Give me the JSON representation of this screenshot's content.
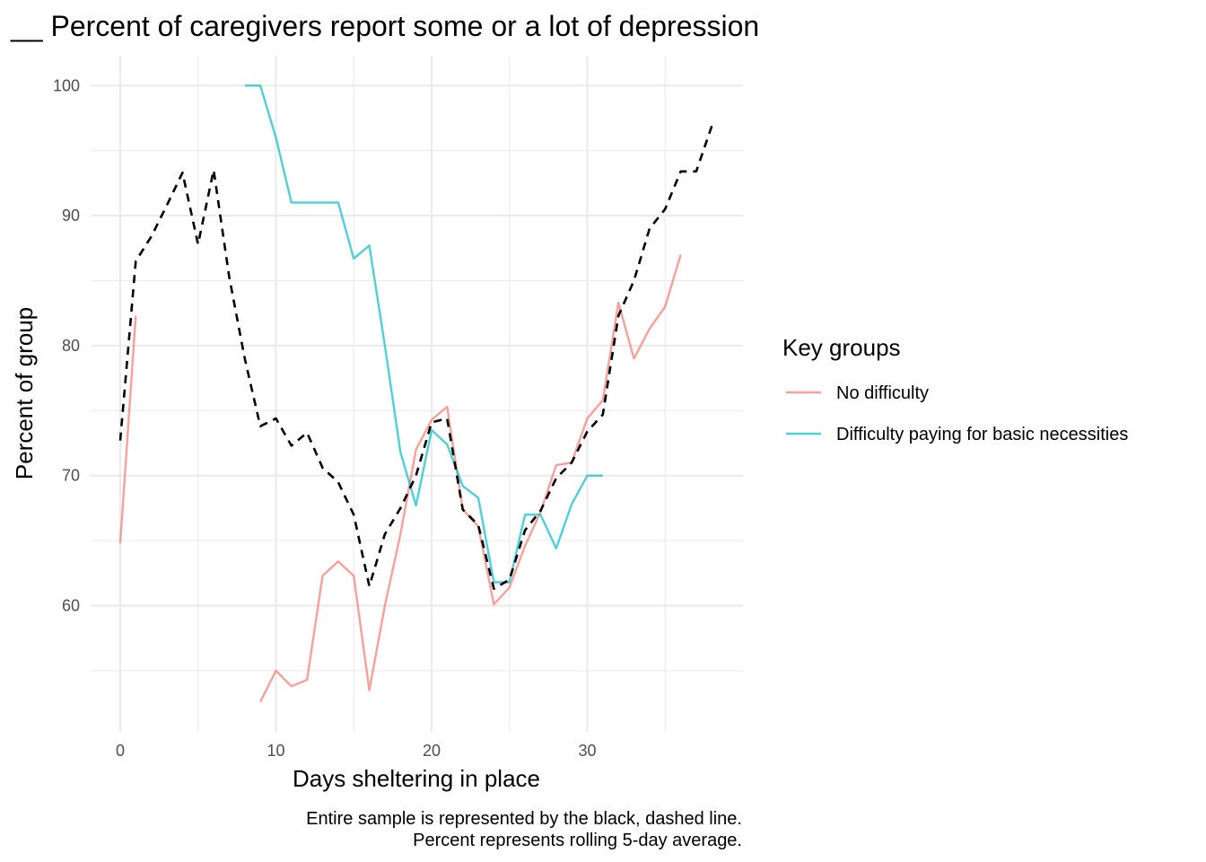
{
  "chart_data": {
    "type": "line",
    "title": "__ Percent of caregivers report some or a lot of depression",
    "xlabel": "Days sheltering in place",
    "ylabel": "Percent of group",
    "xlim": [
      -1.9,
      40
    ],
    "ylim": [
      50.3,
      102.3
    ],
    "x_ticks": [
      0,
      10,
      20,
      30
    ],
    "x_minor_ticks": [
      5,
      15,
      25,
      35
    ],
    "y_ticks": [
      60,
      70,
      80,
      90,
      100
    ],
    "y_minor_ticks": [
      55,
      65,
      75,
      85,
      95
    ],
    "grid": true,
    "legend": {
      "title": "Key groups",
      "position": "right",
      "entries": [
        "No difficulty",
        "Difficulty paying for basic necessities"
      ]
    },
    "caption": [
      "Entire sample is represented by the black, dashed line.",
      "Percent represents rolling 5-day average."
    ],
    "series": [
      {
        "name": "No difficulty",
        "color": "#f8766d",
        "dashed": false,
        "segments": [
          [
            [
              0,
              64.8
            ],
            [
              1,
              82.3
            ]
          ],
          [
            [
              9,
              52.6
            ],
            [
              10,
              55.0
            ],
            [
              11,
              53.8
            ],
            [
              12,
              54.3
            ],
            [
              13,
              62.3
            ],
            [
              14,
              63.4
            ],
            [
              15,
              62.3
            ],
            [
              16,
              53.5
            ],
            [
              17,
              60.0
            ],
            [
              18,
              65.5
            ],
            [
              19,
              72.0
            ],
            [
              20,
              74.3
            ],
            [
              21,
              75.3
            ],
            [
              22,
              67.4
            ],
            [
              23,
              66.1
            ],
            [
              24,
              60.1
            ],
            [
              25,
              61.4
            ],
            [
              26,
              64.6
            ],
            [
              27,
              67.2
            ],
            [
              28,
              70.8
            ],
            [
              29,
              71.0
            ],
            [
              30,
              74.4
            ],
            [
              31,
              75.8
            ],
            [
              32,
              83.3
            ],
            [
              33,
              79.0
            ],
            [
              34,
              81.3
            ],
            [
              35,
              83.0
            ],
            [
              36,
              87.0
            ]
          ]
        ]
      },
      {
        "name": "Difficulty paying for basic necessities",
        "color": "#00bfc4",
        "dashed": false,
        "segments": [
          [
            [
              8,
              100.0
            ],
            [
              9,
              100.0
            ],
            [
              10,
              96.0
            ],
            [
              11,
              91.0
            ],
            [
              12,
              91.0
            ],
            [
              13,
              91.0
            ],
            [
              14,
              91.0
            ],
            [
              15,
              86.7
            ],
            [
              16,
              87.7
            ],
            [
              17,
              80.0
            ],
            [
              18,
              71.8
            ],
            [
              19,
              67.7
            ],
            [
              20,
              73.5
            ],
            [
              21,
              72.4
            ],
            [
              22,
              69.2
            ],
            [
              23,
              68.3
            ],
            [
              24,
              61.8
            ],
            [
              25,
              61.8
            ],
            [
              26,
              67.0
            ],
            [
              27,
              67.0
            ],
            [
              28,
              64.4
            ],
            [
              29,
              67.8
            ],
            [
              30,
              70.0
            ],
            [
              31,
              70.0
            ]
          ]
        ]
      },
      {
        "name": "",
        "color": "#000000",
        "dashed": true,
        "segments": [
          [
            [
              0,
              72.7
            ],
            [
              1,
              86.5
            ],
            [
              2,
              88.4
            ],
            [
              3,
              90.8
            ],
            [
              4,
              93.3
            ],
            [
              5,
              87.8
            ],
            [
              6,
              93.5
            ],
            [
              7,
              85.3
            ],
            [
              8,
              79.0
            ],
            [
              9,
              73.8
            ],
            [
              10,
              74.4
            ],
            [
              11,
              72.3
            ],
            [
              12,
              73.3
            ],
            [
              13,
              70.6
            ],
            [
              14,
              69.5
            ],
            [
              15,
              67.0
            ],
            [
              16,
              61.5
            ],
            [
              17,
              65.5
            ],
            [
              18,
              67.5
            ],
            [
              19,
              70.0
            ],
            [
              20,
              74.1
            ],
            [
              21,
              74.4
            ],
            [
              22,
              67.4
            ],
            [
              23,
              66.2
            ],
            [
              24,
              61.3
            ],
            [
              25,
              62.0
            ],
            [
              26,
              65.8
            ],
            [
              27,
              67.3
            ],
            [
              28,
              69.8
            ],
            [
              29,
              71.0
            ],
            [
              30,
              73.4
            ],
            [
              31,
              74.7
            ],
            [
              32,
              82.3
            ],
            [
              33,
              85.0
            ],
            [
              34,
              89.0
            ],
            [
              35,
              90.5
            ],
            [
              36,
              93.4
            ],
            [
              37,
              93.4
            ],
            [
              38,
              96.9
            ]
          ]
        ]
      }
    ]
  }
}
